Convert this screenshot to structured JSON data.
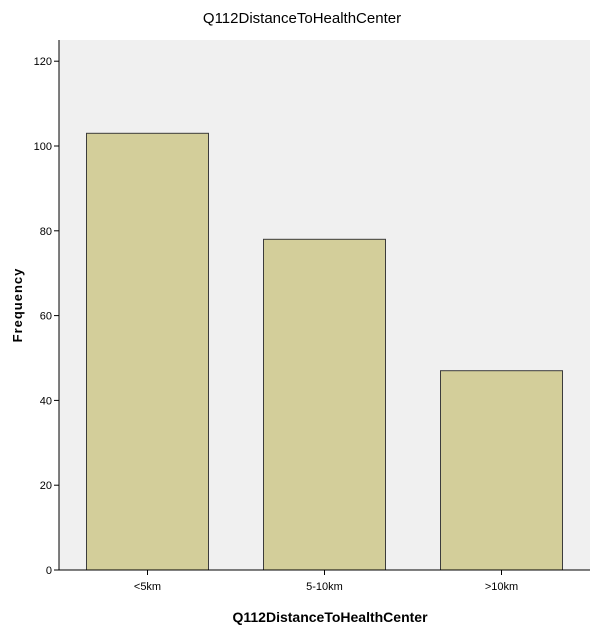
{
  "chart_data": {
    "type": "bar",
    "title": "Q112DistanceToHealthCenter",
    "xlabel": "Q112DistanceToHealthCenter",
    "ylabel": "Frequency",
    "categories": [
      "<5km",
      "5-10km",
      ">10km"
    ],
    "values": [
      103,
      78,
      47
    ],
    "ylim": [
      0,
      125
    ],
    "yticks": [
      0,
      20,
      40,
      60,
      80,
      100,
      120
    ],
    "grid": false,
    "legend": "none"
  },
  "colors": {
    "plot_background": "#f0f0f0",
    "bar_fill": "#d3ce9a",
    "bar_stroke": "#3c3c3c",
    "axis": "#000000"
  }
}
